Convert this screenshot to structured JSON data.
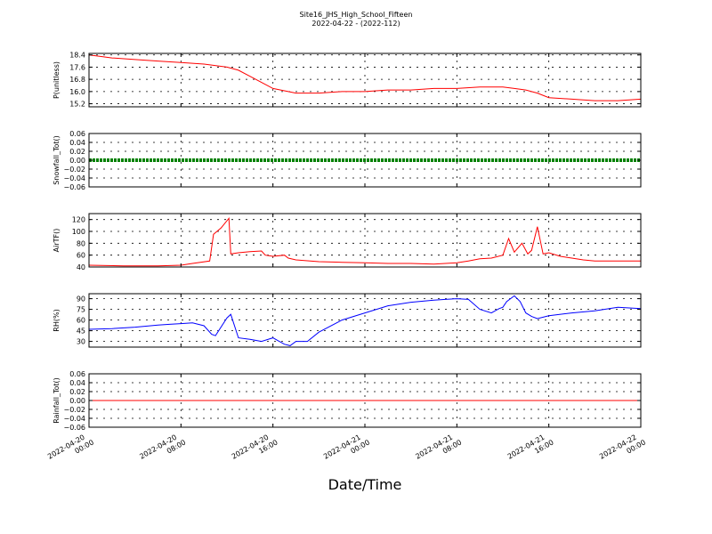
{
  "chart_data": {
    "type": "line",
    "title": "Site16_JHS_High_School_Fifteen",
    "subtitle": "2022-04-22 - (2022-112)",
    "xlabel": "Date/Time",
    "x_range": [
      "2022-04-20 00:00",
      "2022-04-22 00:00"
    ],
    "x_ticks": [
      {
        "at": "2022-04-20 00:00",
        "label": [
          "2022-04-20",
          "00:00"
        ]
      },
      {
        "at": "2022-04-20 08:00",
        "label": [
          "2022-04-20",
          "08:00"
        ]
      },
      {
        "at": "2022-04-20 16:00",
        "label": [
          "2022-04-20",
          "16:00"
        ]
      },
      {
        "at": "2022-04-21 00:00",
        "label": [
          "2022-04-21",
          "00:00"
        ]
      },
      {
        "at": "2022-04-21 08:00",
        "label": [
          "2022-04-21",
          "08:00"
        ]
      },
      {
        "at": "2022-04-21 16:00",
        "label": [
          "2022-04-21",
          "16:00"
        ]
      },
      {
        "at": "2022-04-22 00:00",
        "label": [
          "2022-04-22",
          "00:00"
        ]
      }
    ],
    "grid": true,
    "panels": [
      {
        "ylabel": "P(unitless)",
        "ylim": [
          15.0,
          18.5
        ],
        "yticks": [
          15.2,
          16.0,
          16.8,
          17.6,
          18.4
        ],
        "ytick_labels": [
          "15.2",
          "16.0",
          "16.8",
          "17.6",
          "18.4"
        ],
        "color": "#ff0000",
        "series": [
          {
            "x": [
              "2022-04-20 00:00",
              "2022-04-20 01:00",
              "2022-04-20 02:00",
              "2022-04-20 04:00",
              "2022-04-20 06:00",
              "2022-04-20 08:00",
              "2022-04-20 10:00",
              "2022-04-20 12:00",
              "2022-04-20 13:00",
              "2022-04-20 14:00",
              "2022-04-20 15:00",
              "2022-04-20 16:00",
              "2022-04-20 18:00",
              "2022-04-20 20:00",
              "2022-04-20 22:00",
              "2022-04-21 00:00",
              "2022-04-21 02:00",
              "2022-04-21 04:00",
              "2022-04-21 06:00",
              "2022-04-21 08:00",
              "2022-04-21 10:00",
              "2022-04-21 12:00",
              "2022-04-21 13:00",
              "2022-04-21 14:00",
              "2022-04-21 15:00",
              "2022-04-21 16:00",
              "2022-04-21 18:00",
              "2022-04-21 20:00",
              "2022-04-21 22:00",
              "2022-04-22 00:00"
            ],
            "y": [
              18.4,
              18.3,
              18.2,
              18.1,
              18.0,
              17.9,
              17.8,
              17.6,
              17.4,
              17.0,
              16.6,
              16.2,
              15.9,
              15.9,
              16.0,
              16.0,
              16.1,
              16.1,
              16.2,
              16.2,
              16.3,
              16.3,
              16.2,
              16.1,
              15.9,
              15.6,
              15.5,
              15.4,
              15.4,
              15.5
            ]
          }
        ]
      },
      {
        "ylabel": "Snowfall_Tot()",
        "ylim": [
          -0.06,
          0.06
        ],
        "yticks": [
          -0.06,
          -0.04,
          -0.02,
          0.0,
          0.02,
          0.04,
          0.06
        ],
        "ytick_labels": [
          "−0.06",
          "−0.04",
          "−0.02",
          "0.00",
          "0.02",
          "0.04",
          "0.06"
        ],
        "color": "#008000",
        "series": [
          {
            "x": [
              "2022-04-20 00:00",
              "2022-04-22 00:00"
            ],
            "y": [
              0.0,
              0.0
            ]
          }
        ]
      },
      {
        "ylabel": "AirTF()",
        "ylim": [
          40,
          130
        ],
        "yticks": [
          40,
          60,
          80,
          100,
          120
        ],
        "ytick_labels": [
          "40",
          "60",
          "80",
          "100",
          "120"
        ],
        "color": "#ff0000",
        "series": [
          {
            "x": [
              "2022-04-20 00:00",
              "2022-04-20 03:00",
              "2022-04-20 06:00",
              "2022-04-20 08:00",
              "2022-04-20 09:00",
              "2022-04-20 10:30",
              "2022-04-20 10:50",
              "2022-04-20 11:30",
              "2022-04-20 12:10",
              "2022-04-20 12:20",
              "2022-04-20 13:00",
              "2022-04-20 14:00",
              "2022-04-20 15:00",
              "2022-04-20 15:20",
              "2022-04-20 16:00",
              "2022-04-20 17:00",
              "2022-04-20 17:20",
              "2022-04-20 18:00",
              "2022-04-20 20:00",
              "2022-04-20 22:00",
              "2022-04-21 00:00",
              "2022-04-21 02:00",
              "2022-04-21 04:00",
              "2022-04-21 06:00",
              "2022-04-21 08:00",
              "2022-04-21 09:00",
              "2022-04-21 10:00",
              "2022-04-21 11:00",
              "2022-04-21 12:00",
              "2022-04-21 12:30",
              "2022-04-21 13:00",
              "2022-04-21 13:40",
              "2022-04-21 14:10",
              "2022-04-21 14:30",
              "2022-04-21 15:00",
              "2022-04-21 15:30",
              "2022-04-21 16:00",
              "2022-04-21 17:00",
              "2022-04-21 18:00",
              "2022-04-21 19:00",
              "2022-04-21 20:00",
              "2022-04-21 22:00",
              "2022-04-22 00:00"
            ],
            "y": [
              43,
              42,
              42,
              43,
              46,
              50,
              95,
              106,
              122,
              62,
              64,
              66,
              67,
              60,
              58,
              60,
              55,
              52,
              49,
              48,
              47,
              46,
              46,
              45,
              47,
              50,
              54,
              55,
              60,
              88,
              65,
              80,
              62,
              68,
              108,
              62,
              64,
              58,
              55,
              52,
              50,
              50,
              50
            ]
          }
        ]
      },
      {
        "ylabel": "RH(%)",
        "ylim": [
          22,
          97
        ],
        "yticks": [
          30,
          45,
          60,
          75,
          90
        ],
        "ytick_labels": [
          "30",
          "45",
          "60",
          "75",
          "90"
        ],
        "color": "#0000ff",
        "series": [
          {
            "x": [
              "2022-04-20 00:00",
              "2022-04-20 02:00",
              "2022-04-20 04:00",
              "2022-04-20 06:00",
              "2022-04-20 07:00",
              "2022-04-20 08:00",
              "2022-04-20 09:00",
              "2022-04-20 10:00",
              "2022-04-20 10:40",
              "2022-04-20 11:00",
              "2022-04-20 12:00",
              "2022-04-20 12:20",
              "2022-04-20 13:00",
              "2022-04-20 14:00",
              "2022-04-20 15:00",
              "2022-04-20 16:00",
              "2022-04-20 17:00",
              "2022-04-20 17:30",
              "2022-04-20 18:00",
              "2022-04-20 19:00",
              "2022-04-20 20:00",
              "2022-04-20 22:00",
              "2022-04-21 00:00",
              "2022-04-21 02:00",
              "2022-04-21 04:00",
              "2022-04-21 06:00",
              "2022-04-21 07:00",
              "2022-04-21 08:00",
              "2022-04-21 09:00",
              "2022-04-21 10:00",
              "2022-04-21 11:00",
              "2022-04-21 11:40",
              "2022-04-21 12:00",
              "2022-04-21 12:20",
              "2022-04-21 13:00",
              "2022-04-21 13:30",
              "2022-04-21 14:00",
              "2022-04-21 14:30",
              "2022-04-21 15:00",
              "2022-04-21 16:00",
              "2022-04-21 18:00",
              "2022-04-21 20:00",
              "2022-04-21 22:00",
              "2022-04-22 00:00"
            ],
            "y": [
              47,
              48,
              50,
              53,
              54,
              55,
              56,
              52,
              40,
              38,
              63,
              68,
              35,
              33,
              30,
              35,
              26,
              24,
              30,
              30,
              43,
              60,
              70,
              80,
              85,
              88,
              89,
              90,
              89,
              75,
              70,
              76,
              78,
              86,
              94,
              86,
              70,
              65,
              62,
              66,
              70,
              73,
              78,
              76
            ]
          }
        ]
      },
      {
        "ylabel": "Rainfall_Tot()",
        "ylim": [
          -0.06,
          0.06
        ],
        "yticks": [
          -0.06,
          -0.04,
          -0.02,
          0.0,
          0.02,
          0.04,
          0.06
        ],
        "ytick_labels": [
          "−0.06",
          "−0.04",
          "−0.02",
          "0.00",
          "0.02",
          "0.04",
          "0.06"
        ],
        "color": "#ff0000",
        "series": [
          {
            "x": [
              "2022-04-20 00:00",
              "2022-04-22 00:00"
            ],
            "y": [
              0.0,
              0.0
            ]
          }
        ]
      }
    ]
  }
}
